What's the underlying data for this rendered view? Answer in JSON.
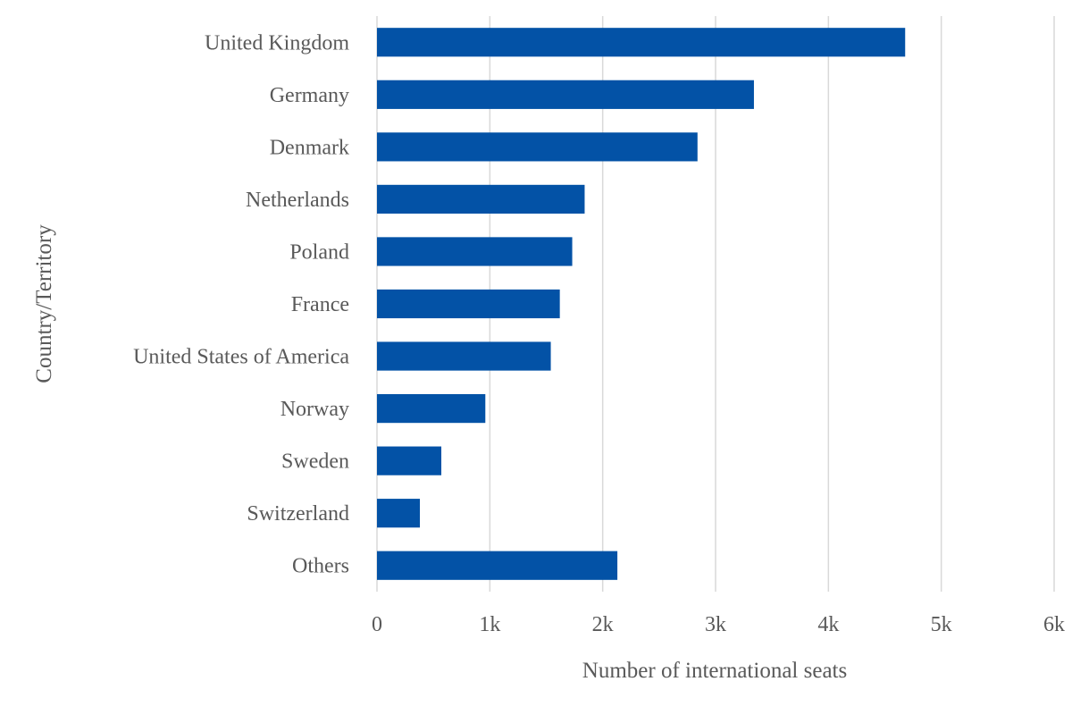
{
  "chart_data": {
    "type": "bar",
    "orientation": "horizontal",
    "categories": [
      "United Kingdom",
      "Germany",
      "Denmark",
      "Netherlands",
      "Poland",
      "France",
      "United States of America",
      "Norway",
      "Sweden",
      "Switzerland",
      "Others"
    ],
    "values": [
      4680,
      3340,
      2840,
      1840,
      1730,
      1620,
      1540,
      960,
      570,
      380,
      2130
    ],
    "xlabel": "Number of international seats",
    "ylabel": "Country/Territory",
    "xlim": [
      0,
      6000
    ],
    "xticks": [
      0,
      1000,
      2000,
      3000,
      4000,
      5000,
      6000
    ],
    "xtick_labels": [
      "0",
      "1k",
      "2k",
      "3k",
      "4k",
      "5k",
      "6k"
    ],
    "bar_color": "#0352A6",
    "grid_color": "#d9d9d9",
    "grid": "vertical",
    "legend": "none"
  }
}
